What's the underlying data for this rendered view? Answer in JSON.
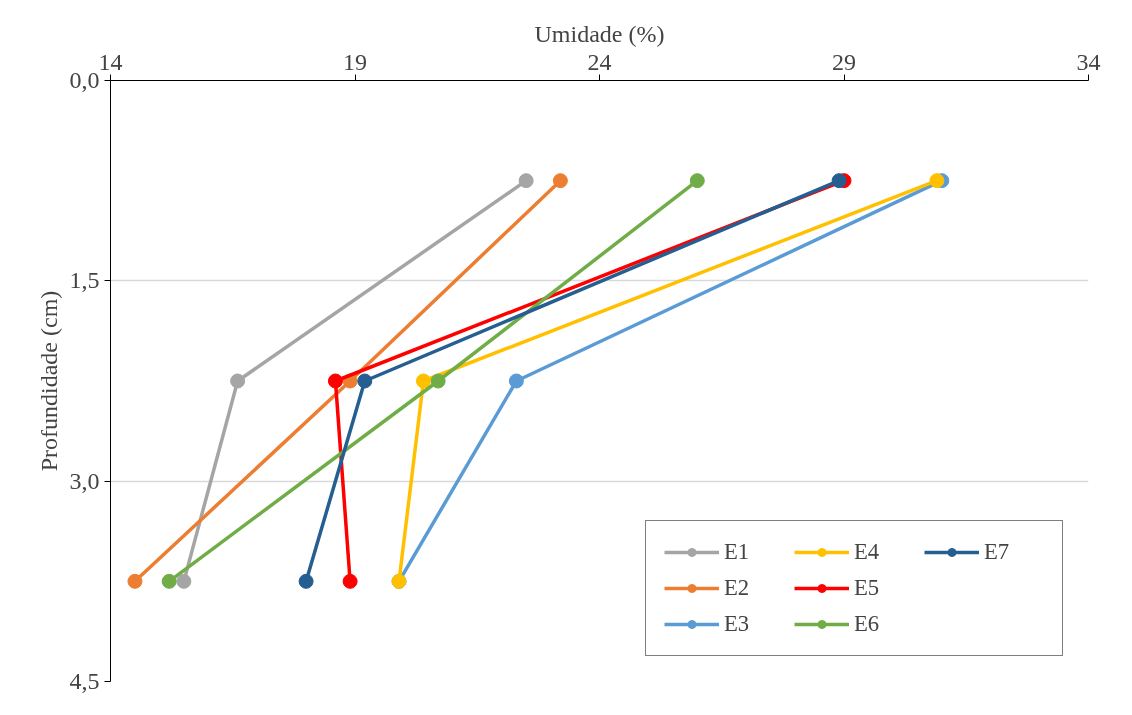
{
  "chart_data": {
    "type": "line",
    "xlabel": "Umidade (%)",
    "ylabel": "Profundidade (cm)",
    "xlim": [
      14,
      34
    ],
    "xticks": [
      14,
      19,
      24,
      29,
      34
    ],
    "ylim": [
      4.5,
      0
    ],
    "yticks": [
      {
        "value": 0,
        "label": "0,0"
      },
      {
        "value": 1.5,
        "label": "1,5"
      },
      {
        "value": 3,
        "label": "3,0"
      },
      {
        "value": 4.5,
        "label": "4,5"
      }
    ],
    "grid": "y",
    "legend": "bottom right",
    "marker": "circle",
    "line_style": "solid",
    "series": [
      {
        "name": "E1",
        "color": "#a5a5a5",
        "x": [
          22.5,
          16.6,
          15.5
        ],
        "values": [
          0.75,
          2.25,
          3.75
        ]
      },
      {
        "name": "E2",
        "color": "#ed7d31",
        "x": [
          23.2,
          18.9,
          14.5
        ],
        "values": [
          0.75,
          2.25,
          3.75
        ]
      },
      {
        "name": "E3",
        "color": "#5b9bd5",
        "x": [
          31.0,
          22.3,
          19.9
        ],
        "values": [
          0.75,
          2.25,
          3.75
        ]
      },
      {
        "name": "E4",
        "color": "#ffc000",
        "x": [
          30.9,
          20.4,
          19.9
        ],
        "values": [
          0.75,
          2.25,
          3.75
        ]
      },
      {
        "name": "E5",
        "color": "#ff0000",
        "x": [
          29.0,
          18.6,
          18.9
        ],
        "values": [
          0.75,
          2.25,
          3.75
        ]
      },
      {
        "name": "E6",
        "color": "#70ad47",
        "x": [
          26.0,
          20.7,
          15.2
        ],
        "values": [
          0.75,
          2.25,
          3.75
        ]
      },
      {
        "name": "E7",
        "color": "#255e91",
        "x": [
          28.9,
          19.2,
          18.0
        ],
        "values": [
          0.75,
          2.25,
          3.75
        ]
      }
    ]
  }
}
